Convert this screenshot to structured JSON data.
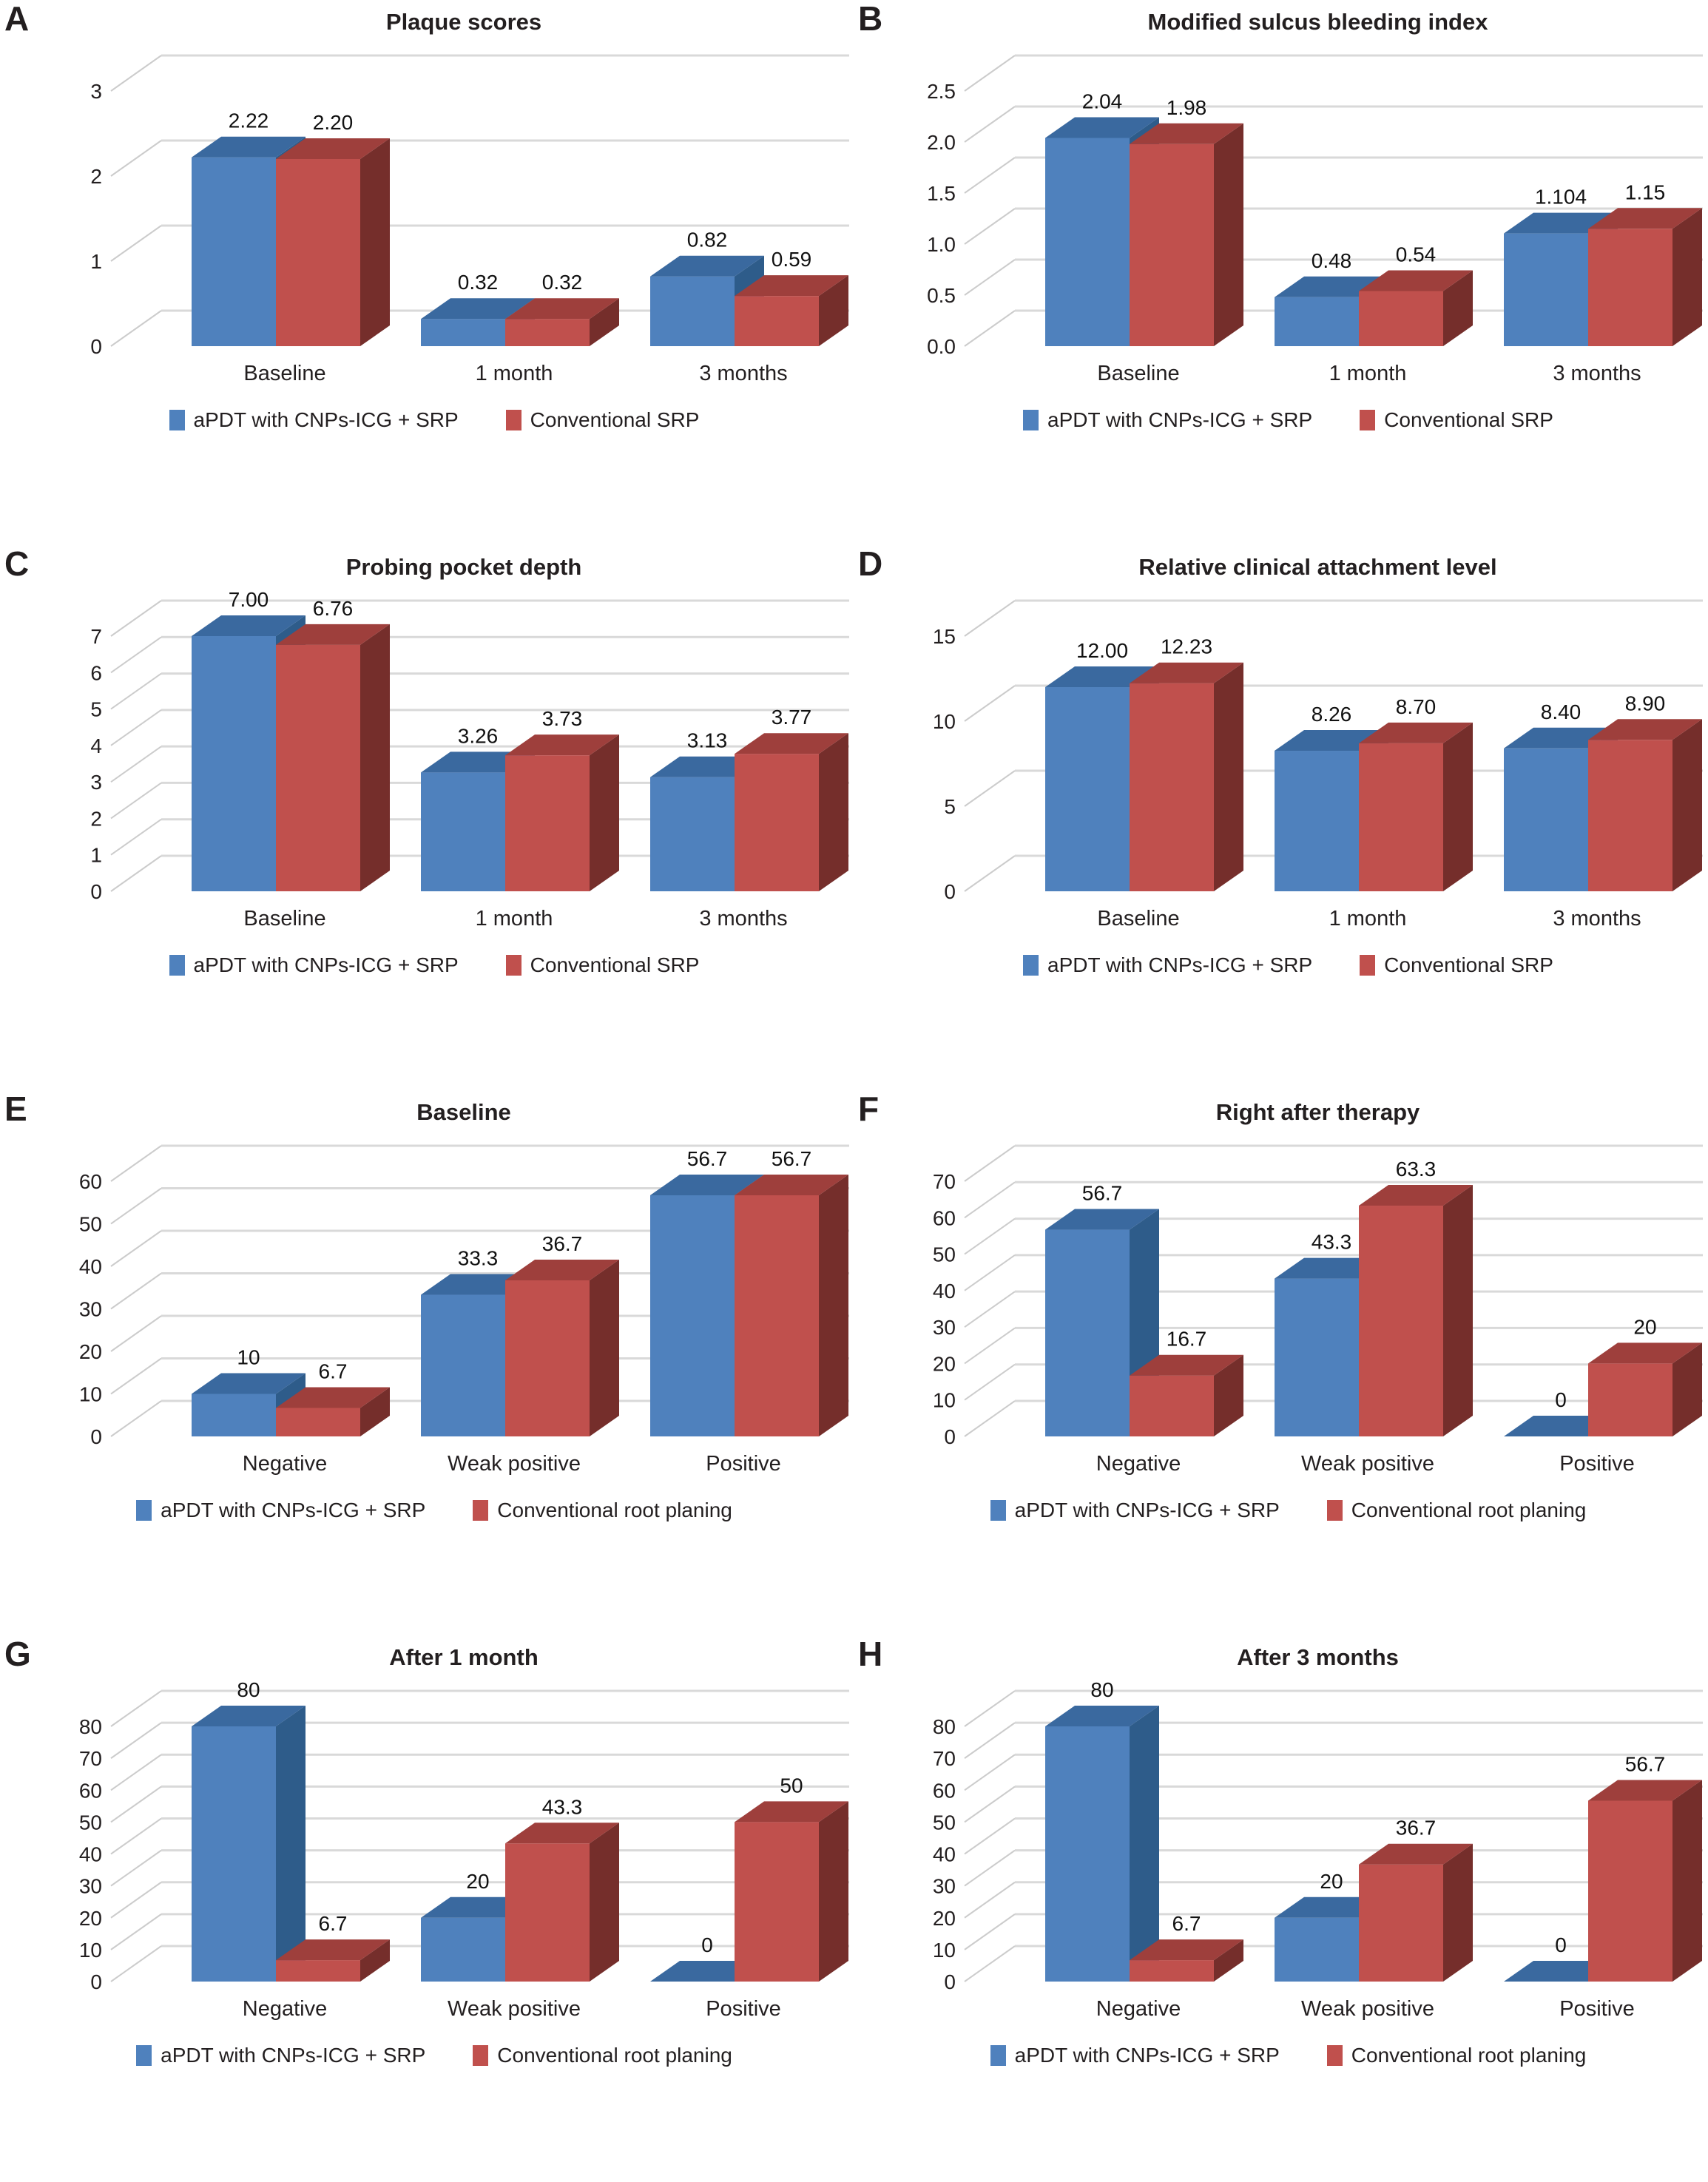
{
  "figure_styles": {
    "grid_color": "#D9D9D9",
    "diag_color": "#CCCCCC",
    "text_color": "#231F20",
    "value_label_color": "#111111",
    "series_shading": [
      {
        "front": "#4F81BD",
        "top": "#3A699F",
        "side": "#2E5C8A"
      },
      {
        "front": "#C0504D",
        "top": "#9E3F3C",
        "side": "#752E2B"
      }
    ]
  },
  "chart_data": [
    {
      "panel": "A",
      "type": "bar",
      "title": "Plaque scores",
      "categories": [
        "Baseline",
        "1 month",
        "3 months"
      ],
      "yticks": [
        "0",
        "1",
        "2",
        "3"
      ],
      "ylim": [
        0,
        3
      ],
      "grid": true,
      "legend_position": "bottom",
      "series": [
        {
          "name": "aPDT with CNPs-ICG + SRP",
          "color": "#4F81BD",
          "values": [
            2.22,
            0.32,
            0.82
          ],
          "labels": [
            "2.22",
            "0.32",
            "0.82"
          ]
        },
        {
          "name": "Conventional SRP",
          "color": "#C0504D",
          "values": [
            2.2,
            0.32,
            0.59
          ],
          "labels": [
            "2.20",
            "0.32",
            "0.59"
          ]
        }
      ]
    },
    {
      "panel": "B",
      "type": "bar",
      "title": "Modified sulcus bleeding index",
      "categories": [
        "Baseline",
        "1 month",
        "3 months"
      ],
      "yticks": [
        "0.0",
        "0.5",
        "1.0",
        "1.5",
        "2.0",
        "2.5"
      ],
      "ylim": [
        0,
        2.5
      ],
      "grid": true,
      "legend_position": "bottom",
      "series": [
        {
          "name": "aPDT with CNPs-ICG + SRP",
          "color": "#4F81BD",
          "values": [
            2.04,
            0.48,
            1.104
          ],
          "labels": [
            "2.04",
            "0.48",
            "1.104"
          ]
        },
        {
          "name": "Conventional SRP",
          "color": "#C0504D",
          "values": [
            1.98,
            0.54,
            1.15
          ],
          "labels": [
            "1.98",
            "0.54",
            "1.15"
          ]
        }
      ]
    },
    {
      "panel": "C",
      "type": "bar",
      "title": "Probing pocket depth",
      "categories": [
        "Baseline",
        "1 month",
        "3 months"
      ],
      "yticks": [
        "0",
        "1",
        "2",
        "3",
        "4",
        "5",
        "6",
        "7"
      ],
      "ylim": [
        0,
        7
      ],
      "grid": true,
      "legend_position": "bottom",
      "series": [
        {
          "name": "aPDT with CNPs-ICG + SRP",
          "color": "#4F81BD",
          "values": [
            7.0,
            3.26,
            3.13
          ],
          "labels": [
            "7.00",
            "3.26",
            "3.13"
          ]
        },
        {
          "name": "Conventional SRP",
          "color": "#C0504D",
          "values": [
            6.76,
            3.73,
            3.77
          ],
          "labels": [
            "6.76",
            "3.73",
            "3.77"
          ]
        }
      ]
    },
    {
      "panel": "D",
      "type": "bar",
      "title": "Relative clinical attachment level",
      "categories": [
        "Baseline",
        "1 month",
        "3 months"
      ],
      "yticks": [
        "0",
        "5",
        "10",
        "15"
      ],
      "ylim": [
        0,
        15
      ],
      "grid": true,
      "legend_position": "bottom",
      "series": [
        {
          "name": "aPDT with CNPs-ICG + SRP",
          "color": "#4F81BD",
          "values": [
            12.0,
            8.26,
            8.4
          ],
          "labels": [
            "12.00",
            "8.26",
            "8.40"
          ]
        },
        {
          "name": "Conventional SRP",
          "color": "#C0504D",
          "values": [
            12.23,
            8.7,
            8.9
          ],
          "labels": [
            "12.23",
            "8.70",
            "8.90"
          ]
        }
      ]
    },
    {
      "panel": "E",
      "type": "bar",
      "title": "Baseline",
      "categories": [
        "Negative",
        "Weak positive",
        "Positive"
      ],
      "yticks": [
        "0",
        "10",
        "20",
        "30",
        "40",
        "50",
        "60"
      ],
      "ylim": [
        0,
        60
      ],
      "grid": true,
      "legend_position": "bottom",
      "series": [
        {
          "name": "aPDT with CNPs-ICG + SRP",
          "color": "#4F81BD",
          "values": [
            10,
            33.3,
            56.7
          ],
          "labels": [
            "10",
            "33.3",
            "56.7"
          ]
        },
        {
          "name": "Conventional root planing",
          "color": "#C0504D",
          "values": [
            6.7,
            36.7,
            56.7
          ],
          "labels": [
            "6.7",
            "36.7",
            "56.7"
          ]
        }
      ]
    },
    {
      "panel": "F",
      "type": "bar",
      "title": "Right after therapy",
      "categories": [
        "Negative",
        "Weak positive",
        "Positive"
      ],
      "yticks": [
        "0",
        "10",
        "20",
        "30",
        "40",
        "50",
        "60",
        "70"
      ],
      "ylim": [
        0,
        70
      ],
      "grid": true,
      "legend_position": "bottom",
      "series": [
        {
          "name": "aPDT with CNPs-ICG + SRP",
          "color": "#4F81BD",
          "values": [
            56.7,
            43.3,
            0
          ],
          "labels": [
            "56.7",
            "43.3",
            "0"
          ]
        },
        {
          "name": "Conventional root planing",
          "color": "#C0504D",
          "values": [
            16.7,
            63.3,
            20
          ],
          "labels": [
            "16.7",
            "63.3",
            "20"
          ]
        }
      ]
    },
    {
      "panel": "G",
      "type": "bar",
      "title": "After 1 month",
      "categories": [
        "Negative",
        "Weak positive",
        "Positive"
      ],
      "yticks": [
        "0",
        "10",
        "20",
        "30",
        "40",
        "50",
        "60",
        "70",
        "80"
      ],
      "ylim": [
        0,
        80
      ],
      "grid": true,
      "legend_position": "bottom",
      "series": [
        {
          "name": "aPDT with CNPs-ICG + SRP",
          "color": "#4F81BD",
          "values": [
            80,
            20,
            0
          ],
          "labels": [
            "80",
            "20",
            "0"
          ]
        },
        {
          "name": "Conventional root planing",
          "color": "#C0504D",
          "values": [
            6.7,
            43.3,
            50
          ],
          "labels": [
            "6.7",
            "43.3",
            "50"
          ]
        }
      ]
    },
    {
      "panel": "H",
      "type": "bar",
      "title": "After 3 months",
      "categories": [
        "Negative",
        "Weak positive",
        "Positive"
      ],
      "yticks": [
        "0",
        "10",
        "20",
        "30",
        "40",
        "50",
        "60",
        "70",
        "80"
      ],
      "ylim": [
        0,
        80
      ],
      "grid": true,
      "legend_position": "bottom",
      "series": [
        {
          "name": "aPDT with CNPs-ICG + SRP",
          "color": "#4F81BD",
          "values": [
            80,
            20,
            0
          ],
          "labels": [
            "80",
            "20",
            "0"
          ]
        },
        {
          "name": "Conventional root planing",
          "color": "#C0504D",
          "values": [
            6.7,
            36.7,
            56.7
          ],
          "labels": [
            "6.7",
            "36.7",
            "56.7"
          ]
        }
      ]
    }
  ]
}
